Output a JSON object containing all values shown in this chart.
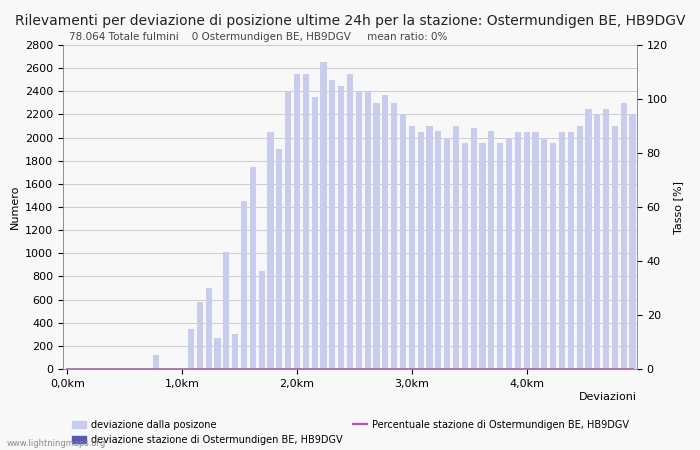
{
  "title": "Rilevamenti per deviazione di posizione ultime 24h per la stazione: Ostermundigen BE, HB9DGV",
  "subtitle": "78.064 Totale fulmini    0 Ostermundigen BE, HB9DGV     mean ratio: 0%",
  "ylabel_left": "Numero",
  "ylabel_right": "Tasso [%]",
  "xlabel_ticks": [
    "0,0km",
    "1,0km",
    "2,0km",
    "3,0km",
    "4,0km"
  ],
  "xlabel_extra": "Deviazioni",
  "ylim_left": [
    0,
    2800
  ],
  "ylim_right": [
    0,
    120
  ],
  "yticks_left": [
    0,
    200,
    400,
    600,
    800,
    1000,
    1200,
    1400,
    1600,
    1800,
    2000,
    2200,
    2400,
    2600,
    2800
  ],
  "yticks_right": [
    0,
    20,
    40,
    60,
    80,
    100,
    120
  ],
  "bar_color_light": "#c8ccee",
  "bar_color_dark": "#5555bb",
  "line_color": "#cc44cc",
  "grid_color": "#bbbbbb",
  "background_color": "#f8f8f8",
  "watermark": "www.lightningmaps.org",
  "legend_items": [
    {
      "label": "deviazione dalla posizone",
      "color": "#c8ccee"
    },
    {
      "label": "deviazione stazione di Ostermundigen BE, HB9DGV",
      "color": "#5555bb"
    },
    {
      "label": "Percentuale stazione di Ostermundigen BE, HB9DGV",
      "color": "#cc44cc"
    }
  ],
  "bar_values": [
    0,
    0,
    0,
    0,
    0,
    0,
    0,
    0,
    0,
    0,
    120,
    0,
    0,
    0,
    350,
    580,
    700,
    270,
    1010,
    300,
    1450,
    1750,
    850,
    2050,
    1900,
    2400,
    2550,
    2550,
    2350,
    2650,
    2500,
    2450,
    2550,
    2400,
    2400,
    2300,
    2370,
    2300,
    2200,
    2100,
    2050,
    2100,
    2060,
    2000,
    2100,
    1950,
    2080,
    1950,
    2060,
    1950,
    2000,
    2050,
    2050,
    2050,
    2000,
    1950,
    2050,
    2050,
    2100,
    2250,
    2200,
    2250,
    2100,
    2300,
    2200
  ],
  "station_bar_values": [
    0,
    0,
    0,
    0,
    0,
    0,
    0,
    0,
    0,
    0,
    0,
    0,
    0,
    0,
    0,
    0,
    0,
    0,
    0,
    0,
    0,
    0,
    0,
    0,
    0,
    0,
    0,
    0,
    0,
    0,
    0,
    0,
    0,
    0,
    0,
    0,
    0,
    0,
    0,
    0,
    0,
    0,
    0,
    0,
    0,
    0,
    0,
    0,
    0,
    0,
    0,
    0,
    0,
    0,
    0,
    0,
    0,
    0,
    0,
    0,
    0,
    0,
    0,
    0,
    0
  ],
  "n_bars": 65,
  "x_tick_positions": [
    0,
    13,
    26,
    39,
    52
  ],
  "title_fontsize": 10,
  "axis_fontsize": 8,
  "tick_fontsize": 8,
  "subtitle_fontsize": 7.5
}
